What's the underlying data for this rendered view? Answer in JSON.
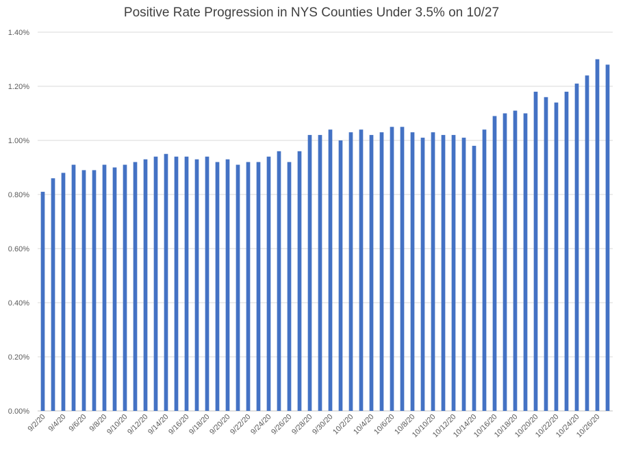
{
  "chart_data": {
    "type": "bar",
    "title": "Positive Rate Progression in NYS Counties Under 3.5% on 10/27",
    "xlabel": "",
    "ylabel": "",
    "ylim": [
      0,
      1.4
    ],
    "ytick_values": [
      0,
      0.2,
      0.4,
      0.6,
      0.8,
      1.0,
      1.2,
      1.4
    ],
    "ytick_labels": [
      "0.00%",
      "0.20%",
      "0.40%",
      "0.60%",
      "0.80%",
      "1.00%",
      "1.20%",
      "1.40%"
    ],
    "grid": true,
    "bar_color": "#4472C4",
    "categories": [
      "9/2/20",
      "9/3/20",
      "9/4/20",
      "9/5/20",
      "9/6/20",
      "9/7/20",
      "9/8/20",
      "9/9/20",
      "9/10/20",
      "9/11/20",
      "9/12/20",
      "9/13/20",
      "9/14/20",
      "9/15/20",
      "9/16/20",
      "9/17/20",
      "9/18/20",
      "9/19/20",
      "9/20/20",
      "9/21/20",
      "9/22/20",
      "9/23/20",
      "9/24/20",
      "9/25/20",
      "9/26/20",
      "9/27/20",
      "9/28/20",
      "9/29/20",
      "9/30/20",
      "10/1/20",
      "10/2/20",
      "10/3/20",
      "10/4/20",
      "10/5/20",
      "10/6/20",
      "10/7/20",
      "10/8/20",
      "10/9/20",
      "10/10/20",
      "10/11/20",
      "10/12/20",
      "10/13/20",
      "10/14/20",
      "10/15/20",
      "10/16/20",
      "10/17/20",
      "10/18/20",
      "10/19/20",
      "10/20/20",
      "10/21/20",
      "10/22/20",
      "10/23/20",
      "10/24/20",
      "10/25/20",
      "10/26/20",
      "10/27/20"
    ],
    "tick_labels": [
      "9/2/20",
      "9/4/20",
      "9/6/20",
      "9/8/20",
      "9/10/20",
      "9/12/20",
      "9/14/20",
      "9/16/20",
      "9/18/20",
      "9/20/20",
      "9/22/20",
      "9/24/20",
      "9/26/20",
      "9/28/20",
      "9/30/20",
      "10/2/20",
      "10/4/20",
      "10/6/20",
      "10/8/20",
      "10/10/20",
      "10/12/20",
      "10/14/20",
      "10/16/20",
      "10/18/20",
      "10/20/20",
      "10/22/20",
      "10/24/20",
      "10/26/20"
    ],
    "values": [
      0.81,
      0.86,
      0.88,
      0.91,
      0.89,
      0.89,
      0.91,
      0.9,
      0.91,
      0.92,
      0.93,
      0.94,
      0.95,
      0.94,
      0.94,
      0.93,
      0.94,
      0.92,
      0.93,
      0.91,
      0.92,
      0.92,
      0.94,
      0.96,
      0.92,
      0.96,
      1.02,
      1.02,
      1.04,
      1.0,
      1.03,
      1.04,
      1.02,
      1.03,
      1.05,
      1.05,
      1.03,
      1.01,
      1.03,
      1.02,
      1.02,
      1.01,
      0.98,
      1.04,
      1.09,
      1.1,
      1.11,
      1.1,
      1.18,
      1.16,
      1.14,
      1.18,
      1.21,
      1.24,
      1.3,
      1.28
    ]
  }
}
